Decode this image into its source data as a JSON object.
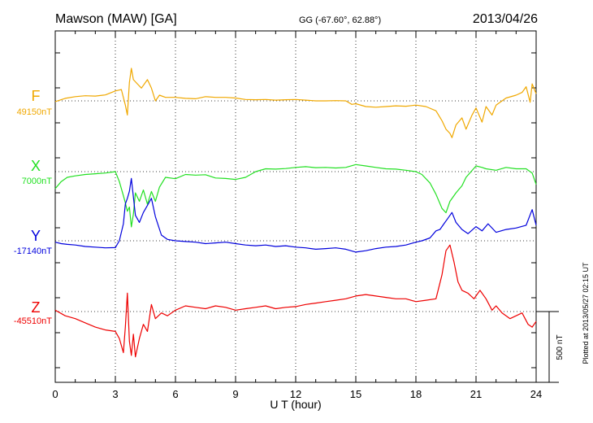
{
  "header": {
    "station": "Mawson (MAW)  [GA]",
    "coords": "GG (-67.60°,  62.88°)",
    "date": "2013/04/26"
  },
  "footer": {
    "plotted": "Plotted at 2013/05/27 02:15 UT",
    "scale_label": "500 nT"
  },
  "colors": {
    "F": "#f0a800",
    "X": "#22e022",
    "Y": "#0000dd",
    "Z": "#ee0000",
    "axis": "#000000",
    "grid": "#000000"
  },
  "chart_data": {
    "type": "line",
    "xlabel": "U T (hour)",
    "xlim": [
      0,
      24
    ],
    "xticks": [
      "0",
      "3",
      "6",
      "9",
      "12",
      "15",
      "18",
      "21",
      "24"
    ],
    "vertical_scale_nT": 500,
    "grid": true,
    "series": [
      {
        "name": "F",
        "color": "#f0a800",
        "baseline_label": "49150nT",
        "baseline_nT": 49150,
        "x": [
          0,
          0.5,
          1,
          1.5,
          2,
          2.5,
          3,
          3.3,
          3.5,
          3.6,
          3.7,
          3.8,
          3.9,
          4.1,
          4.3,
          4.6,
          4.8,
          5,
          5.2,
          5.5,
          6,
          6.5,
          7,
          7.5,
          8,
          8.5,
          9,
          9.5,
          10,
          10.5,
          11,
          11.5,
          12,
          12.5,
          13,
          13.5,
          14,
          14.5,
          14.8,
          15,
          15.5,
          16,
          16.5,
          17,
          17.5,
          18,
          18.5,
          19,
          19.3,
          19.5,
          19.7,
          19.8,
          20,
          20.3,
          20.5,
          20.8,
          21,
          21.3,
          21.5,
          21.8,
          22,
          22.5,
          23,
          23.3,
          23.5,
          23.7,
          23.8,
          24
        ],
        "y": [
          49145,
          49168,
          49180,
          49186,
          49184,
          49192,
          49220,
          49230,
          49120,
          49050,
          49280,
          49380,
          49300,
          49270,
          49240,
          49300,
          49240,
          49150,
          49190,
          49175,
          49175,
          49168,
          49165,
          49180,
          49175,
          49175,
          49170,
          49160,
          49158,
          49160,
          49155,
          49158,
          49160,
          49155,
          49150,
          49150,
          49152,
          49150,
          49125,
          49130,
          49110,
          49105,
          49110,
          49115,
          49112,
          49120,
          49110,
          49080,
          49010,
          48950,
          48920,
          48890,
          48980,
          49030,
          48950,
          49050,
          49100,
          49000,
          49110,
          49050,
          49120,
          49170,
          49190,
          49210,
          49250,
          49140,
          49270,
          49200
        ]
      },
      {
        "name": "X",
        "color": "#22e022",
        "baseline_label": "7000nT",
        "baseline_nT": 7000,
        "x": [
          0,
          0.3,
          0.6,
          1,
          1.5,
          2,
          2.5,
          3,
          3.2,
          3.4,
          3.5,
          3.6,
          3.7,
          3.8,
          3.9,
          4,
          4.2,
          4.4,
          4.6,
          4.8,
          5,
          5.2,
          5.5,
          6,
          6.5,
          7,
          7.5,
          8,
          8.5,
          9,
          9.5,
          10,
          10.5,
          11,
          11.5,
          12,
          12.5,
          13,
          13.5,
          14,
          14.5,
          15,
          15.5,
          16,
          16.5,
          17,
          17.5,
          18,
          18.3,
          18.7,
          19,
          19.3,
          19.5,
          19.7,
          20,
          20.3,
          20.5,
          21,
          21.3,
          21.5,
          22,
          22.5,
          23,
          23.5,
          23.8,
          24
        ],
        "y": [
          6880,
          6930,
          6960,
          6970,
          6980,
          6985,
          6990,
          7000,
          6930,
          6830,
          6780,
          6720,
          6750,
          6610,
          6700,
          6850,
          6790,
          6870,
          6770,
          6860,
          6790,
          6890,
          6960,
          6950,
          6980,
          6975,
          6978,
          6955,
          6952,
          6945,
          6960,
          7000,
          7020,
          7018,
          7022,
          7030,
          7035,
          7028,
          7030,
          7026,
          7030,
          7050,
          7040,
          7030,
          7020,
          7018,
          7010,
          7000,
          6980,
          6920,
          6840,
          6740,
          6710,
          6790,
          6850,
          6900,
          6960,
          7040,
          7030,
          7020,
          7010,
          7030,
          7020,
          7020,
          6990,
          6910
        ]
      },
      {
        "name": "Y",
        "color": "#0000dd",
        "baseline_label": "-17140nT",
        "baseline_nT": -17140,
        "x": [
          0,
          0.3,
          0.6,
          1,
          1.5,
          2,
          2.5,
          3,
          3.2,
          3.4,
          3.5,
          3.6,
          3.7,
          3.8,
          3.9,
          4,
          4.2,
          4.4,
          4.6,
          4.8,
          5,
          5.3,
          5.6,
          6,
          6.5,
          7,
          7.5,
          8,
          8.5,
          9,
          9.5,
          10,
          10.5,
          11,
          11.5,
          12,
          12.5,
          13,
          13.5,
          14,
          14.5,
          15,
          15.5,
          16,
          16.5,
          17,
          17.5,
          18,
          18.3,
          18.7,
          19,
          19.2,
          19.4,
          19.6,
          19.8,
          20,
          20.3,
          20.6,
          21,
          21.3,
          21.6,
          22,
          22.5,
          23,
          23.5,
          23.8,
          24
        ],
        "y": [
          -17150,
          -17160,
          -17165,
          -17170,
          -17180,
          -17185,
          -17190,
          -17188,
          -17140,
          -17020,
          -16880,
          -16840,
          -16790,
          -16700,
          -16830,
          -16960,
          -17010,
          -16940,
          -16890,
          -16840,
          -16970,
          -17100,
          -17130,
          -17140,
          -17145,
          -17150,
          -17160,
          -17155,
          -17150,
          -17160,
          -17170,
          -17175,
          -17170,
          -17180,
          -17175,
          -17185,
          -17190,
          -17200,
          -17195,
          -17190,
          -17200,
          -17220,
          -17210,
          -17195,
          -17185,
          -17180,
          -17170,
          -17150,
          -17140,
          -17120,
          -17070,
          -17060,
          -17020,
          -16980,
          -16940,
          -17010,
          -17060,
          -17090,
          -17040,
          -17070,
          -17020,
          -17080,
          -17060,
          -17050,
          -17030,
          -16920,
          -17030
        ]
      },
      {
        "name": "Z",
        "color": "#ee0000",
        "baseline_label": "-45510nT",
        "baseline_nT": -45510,
        "x": [
          0,
          0.5,
          1,
          1.5,
          2,
          2.5,
          3,
          3.2,
          3.4,
          3.5,
          3.6,
          3.7,
          3.8,
          3.9,
          4,
          4.2,
          4.4,
          4.6,
          4.8,
          5,
          5.3,
          5.6,
          6,
          6.5,
          7,
          7.5,
          8,
          8.5,
          9,
          9.5,
          10,
          10.5,
          11,
          11.5,
          12,
          12.5,
          13,
          13.5,
          14,
          14.5,
          15,
          15.5,
          16,
          16.5,
          17,
          17.5,
          18,
          18.5,
          19,
          19.3,
          19.5,
          19.7,
          19.9,
          20.1,
          20.3,
          20.6,
          20.9,
          21.2,
          21.5,
          21.8,
          22,
          22.3,
          22.7,
          23,
          23.3,
          23.6,
          23.8,
          24
        ],
        "y": [
          -45500,
          -45540,
          -45560,
          -45590,
          -45620,
          -45640,
          -45650,
          -45700,
          -45800,
          -45620,
          -45380,
          -45720,
          -45820,
          -45670,
          -45830,
          -45700,
          -45600,
          -45650,
          -45460,
          -45560,
          -45520,
          -45540,
          -45500,
          -45470,
          -45480,
          -45490,
          -45470,
          -45480,
          -45500,
          -45490,
          -45480,
          -45470,
          -45490,
          -45480,
          -45475,
          -45460,
          -45450,
          -45440,
          -45430,
          -45420,
          -45400,
          -45390,
          -45400,
          -45410,
          -45420,
          -45420,
          -45440,
          -45430,
          -45420,
          -45250,
          -45080,
          -45040,
          -45160,
          -45300,
          -45360,
          -45380,
          -45420,
          -45360,
          -45420,
          -45500,
          -45470,
          -45520,
          -45560,
          -45540,
          -45520,
          -45600,
          -45620,
          -45580
        ]
      }
    ]
  }
}
